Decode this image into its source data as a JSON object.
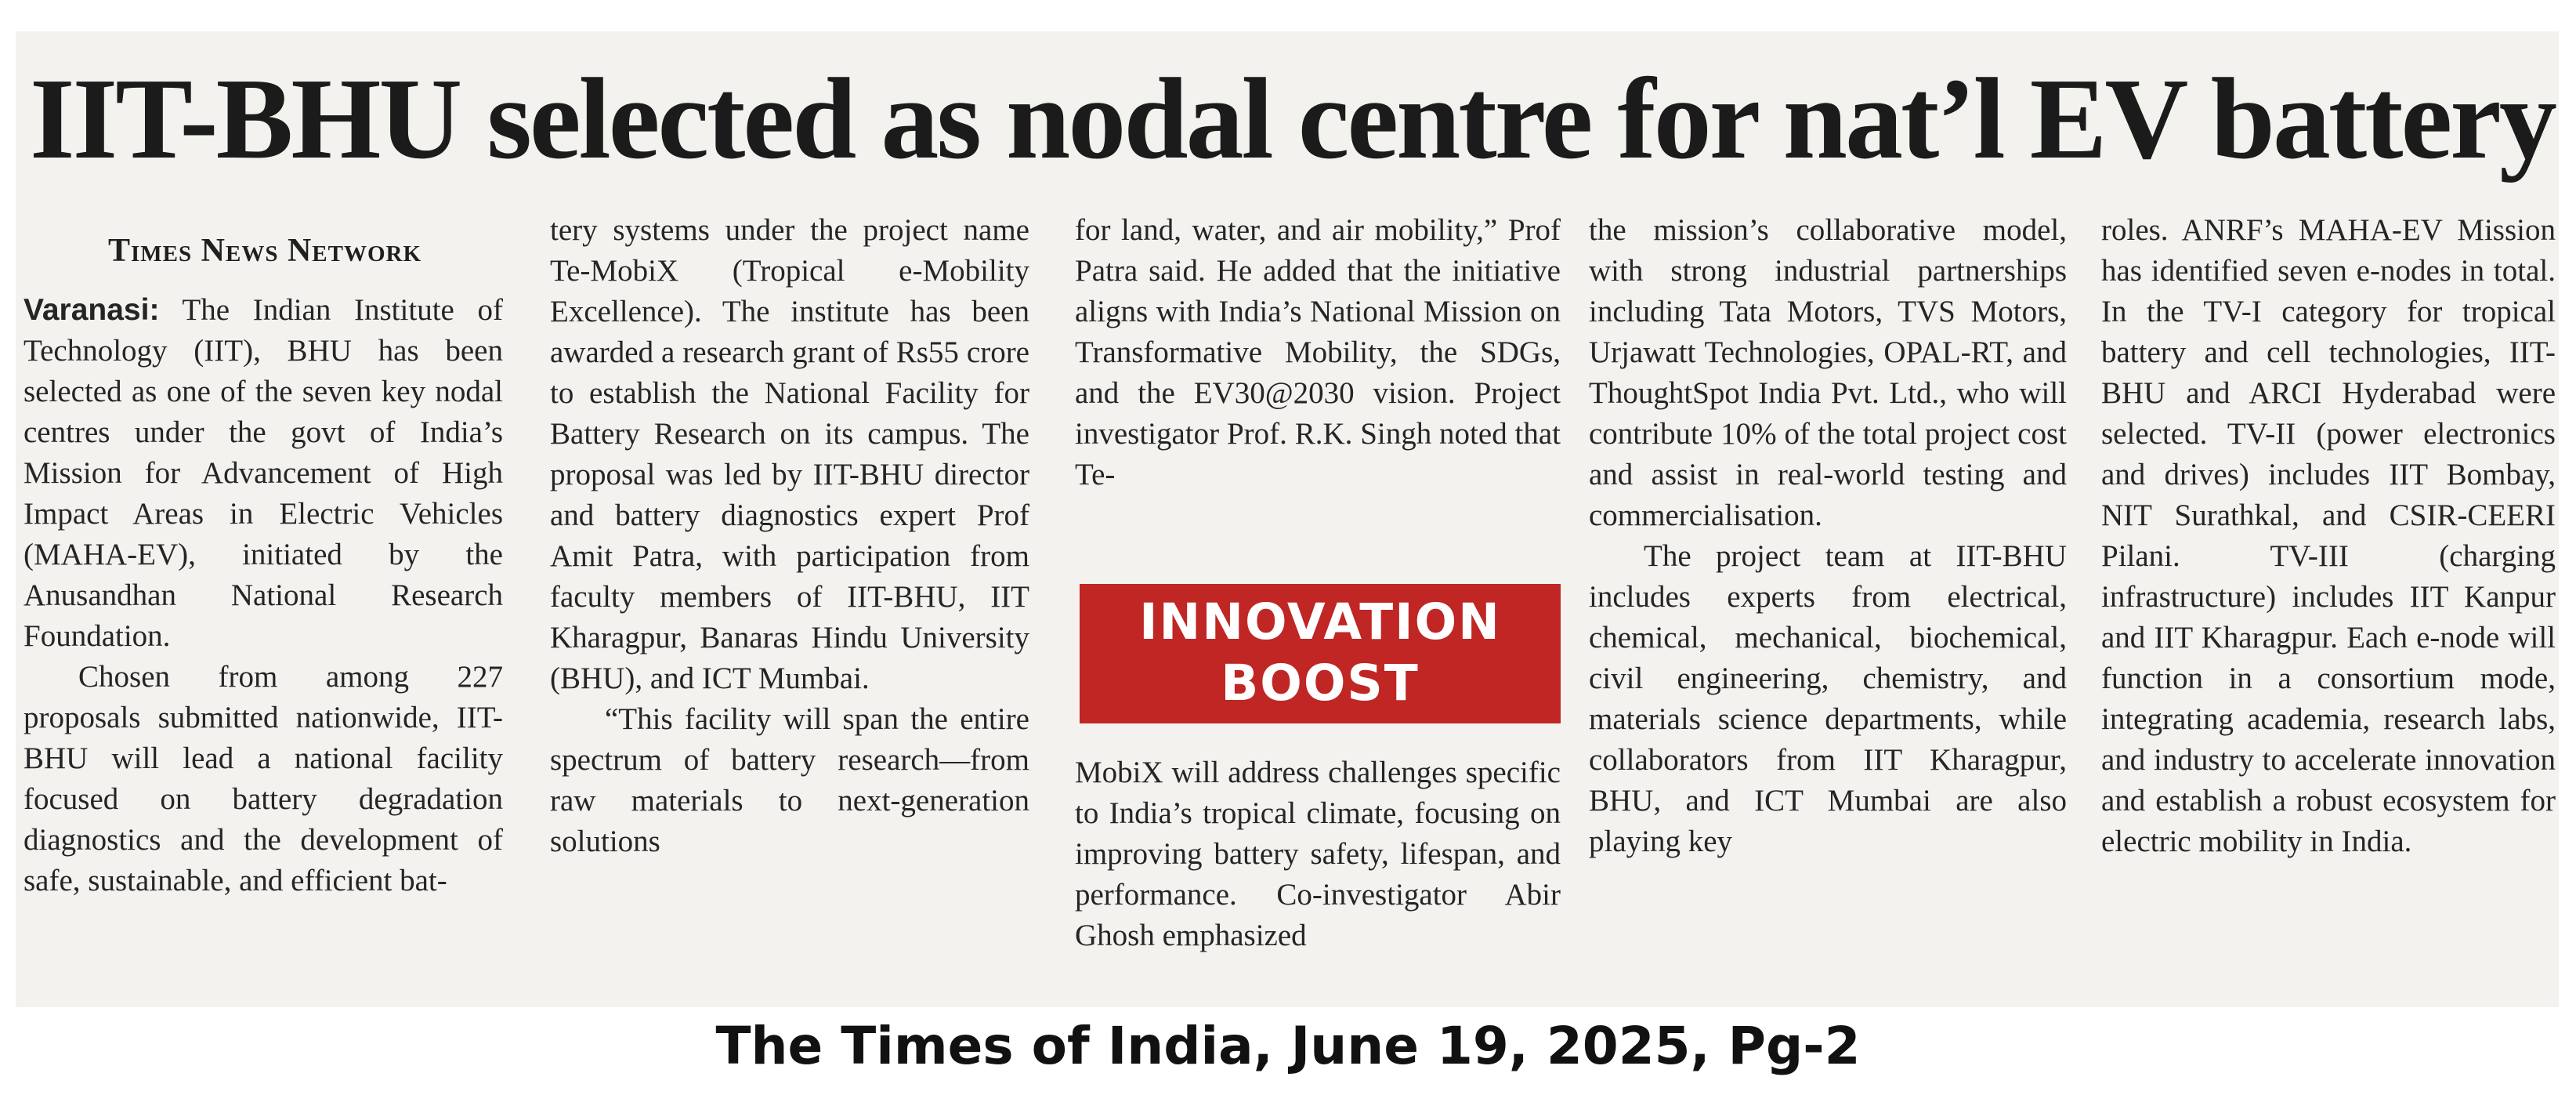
{
  "article": {
    "headline": "IIT-BHU selected as nodal centre for nat’l EV battery research",
    "byline": "Times News Network",
    "dateline": "Varanasi:",
    "col1_lead": " The Indian Institute of Technology (IIT), BHU has been selected as one of the seven key nodal centres under the govt of India’s Mission for Advancement of High Impact Areas in Electric Vehicles (MAHA-EV), initiated by the Anusandhan National Research Foundation.",
    "col1_para2": "Chosen from among 227 proposals submitted nationwide, IIT-BHU will lead a national facility focused on battery degradation diagnostics and the development of safe, sustainable, and efficient bat-",
    "col2_para1": "tery systems under the project name Te-MobiX (Tropical e-Mobility Excellence). The institute has been awarded a research grant of Rs55 crore to establish the National Facility for Battery Research on its campus. The proposal was led by IIT-BHU director and battery diagnostics expert Prof Amit Patra, with participation from faculty members of IIT-BHU, IIT Kharagpur, Banaras Hindu University (BHU), and ICT Mumbai.",
    "col2_para2": "“This facility will span the entire spectrum of battery research—from raw materials to next-generation solutions",
    "col3_para1": "for land, water, and air mobility,” Prof Patra said. He added that the initiative aligns with India’s National Mission on Transformative Mobility, the SDGs, and the EV30@2030 vision. Project investigator Prof. R.K. Singh noted that Te-",
    "banner_line1": "INNOVATION",
    "banner_line2": "BOOST",
    "col3_para2": "MobiX will address challenges specific to India’s tropical climate, focusing on improving battery safety, lifespan, and performance. Co-investigator Abir Ghosh emphasized",
    "col4_para1": "the mission’s collaborative model, with strong industrial partnerships including Tata Motors, TVS Motors, Urjawatt Technologies, OPAL-RT, and ThoughtSpot India Pvt. Ltd., who will contribute 10% of the total project cost and assist in real-world testing and commercialisation.",
    "col4_para2": "The project team at IIT-BHU includes experts from electrical, chemical, mechanical, biochemical, civil engineering, chemistry, and materials science departments, while collaborators from IIT Kharagpur, BHU, and ICT Mumbai are also playing key",
    "col5_para1": "roles. ANRF’s MAHA-EV Mission has identified seven e-nodes in total. In the TV-I category for tropical battery and cell technologies, IIT-BHU and ARCI Hyderabad were selected. TV-II (power electronics and drives) includes IIT Bombay, NIT Surathkal, and CSIR-CEERI Pilani. TV-III (charging infrastructure) includes IIT Kanpur and IIT Kharagpur. Each e-node will function in a consortium mode, integrating academia, research labs, and industry to accelerate innovation and establish a robust ecosystem for electric mobility in India."
  },
  "caption": "The Times of India, June 19, 2025, Pg-2"
}
